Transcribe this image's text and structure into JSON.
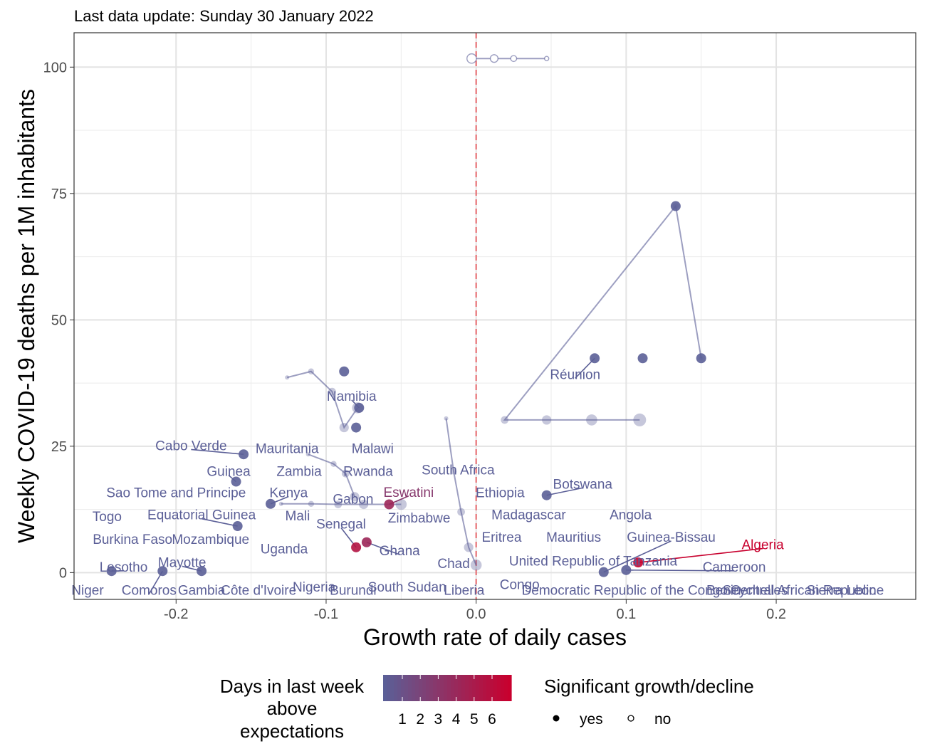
{
  "subtitle": "Last data update: Sunday 30 January 2022",
  "colors": {
    "low": "#5b5f97",
    "high": "#c8002e",
    "reference_line": "#e8676b",
    "grid": "#ebebeb",
    "panel_border": "#333333"
  },
  "chart_data": {
    "type": "scatter",
    "xlabel": "Growth rate of daily cases",
    "ylabel": "Weekly COVID-19 deaths per 1M inhabitants",
    "xlim": [
      -0.268,
      0.293
    ],
    "ylim": [
      -5.3,
      106.8
    ],
    "x_ticks": [
      -0.2,
      -0.1,
      0.0,
      0.1,
      0.2
    ],
    "x_tick_labels": [
      "-0.2",
      "-0.1",
      "0.0",
      "0.1",
      "0.2"
    ],
    "y_ticks": [
      0,
      25,
      50,
      75,
      100
    ],
    "y_tick_labels": [
      "0",
      "25",
      "50",
      "75",
      "100"
    ],
    "reference_line_x": 0.0,
    "grid": true,
    "legend_placement": "bottom",
    "trails": [
      {
        "x": [
          0.047,
          0.025,
          0.012,
          -0.003
        ],
        "y": [
          101.7,
          101.7,
          101.7,
          101.7
        ],
        "color_days": 1,
        "significant": false
      },
      {
        "x": [
          0.15,
          0.133,
          0.019,
          0.047,
          0.077,
          0.109
        ],
        "y": [
          42.4,
          72.5,
          30.2,
          30.2,
          30.2,
          30.2
        ],
        "color_days": 1,
        "significant": true
      },
      {
        "x": [
          -0.126,
          -0.11,
          -0.096,
          -0.088,
          -0.079
        ],
        "y": [
          38.6,
          39.8,
          35.8,
          28.7,
          32.6
        ],
        "color_days": 1,
        "significant": true
      },
      {
        "x": [
          -0.112,
          -0.095,
          -0.087,
          -0.081
        ],
        "y": [
          23.4,
          21.5,
          19.6,
          15.0
        ],
        "color_days": 1,
        "significant": true
      },
      {
        "x": [
          -0.13,
          -0.11,
          -0.092,
          -0.075,
          -0.05
        ],
        "y": [
          13.6,
          13.6,
          13.5,
          13.5,
          13.5
        ],
        "color_days": 1,
        "significant": true
      },
      {
        "x": [
          -0.02,
          -0.015,
          -0.01,
          -0.005,
          0.0
        ],
        "y": [
          30.5,
          20.0,
          12.0,
          5.0,
          1.5
        ],
        "color_days": 1,
        "significant": true
      }
    ],
    "points": [
      {
        "country": "Réunion",
        "x": 0.079,
        "y": 42.4,
        "days_above": 1,
        "significant": true
      },
      {
        "country": "Réunion",
        "x": 0.111,
        "y": 42.4,
        "days_above": 1,
        "significant": true
      },
      {
        "country": "Réunion",
        "x": 0.15,
        "y": 42.4,
        "days_above": 1,
        "significant": true
      },
      {
        "country": "Réunion",
        "x": 0.133,
        "y": 72.5,
        "days_above": 1,
        "significant": true
      },
      {
        "country": "Namibia",
        "x": -0.078,
        "y": 32.6,
        "days_above": 1,
        "significant": true
      },
      {
        "country": "Namibia",
        "x": -0.08,
        "y": 28.7,
        "days_above": 1,
        "significant": true
      },
      {
        "country": "Namibia",
        "x": -0.088,
        "y": 39.8,
        "days_above": 1,
        "significant": true
      },
      {
        "country": "Cabo Verde",
        "x": -0.155,
        "y": 23.4,
        "days_above": 1,
        "significant": true
      },
      {
        "country": "Guinea",
        "x": -0.16,
        "y": 18.0,
        "days_above": 1,
        "significant": true
      },
      {
        "country": "Botswana",
        "x": 0.047,
        "y": 15.3,
        "days_above": 1,
        "significant": true
      },
      {
        "country": "Equatorial Guinea",
        "x": -0.159,
        "y": 9.2,
        "days_above": 1,
        "significant": true
      },
      {
        "country": "Kenya",
        "x": -0.137,
        "y": 13.6,
        "days_above": 1,
        "significant": true
      },
      {
        "country": "Eswatini",
        "x": -0.058,
        "y": 13.5,
        "days_above": 4,
        "significant": true
      },
      {
        "country": "Ghana",
        "x": -0.073,
        "y": 6.0,
        "days_above": 4,
        "significant": true
      },
      {
        "country": "Senegal",
        "x": -0.08,
        "y": 5.0,
        "days_above": 5,
        "significant": true
      },
      {
        "country": "Algeria",
        "x": 0.108,
        "y": 2.0,
        "days_above": 6,
        "significant": true
      },
      {
        "country": "Lesotho",
        "x": -0.243,
        "y": 0.3,
        "days_above": 1,
        "significant": true
      },
      {
        "country": "Comoros",
        "x": -0.209,
        "y": 0.3,
        "days_above": 1,
        "significant": true
      },
      {
        "country": "Mayotte",
        "x": -0.183,
        "y": 0.3,
        "days_above": 1,
        "significant": true
      },
      {
        "country": "Cameroon",
        "x": 0.1,
        "y": 0.5,
        "days_above": 1,
        "significant": true
      },
      {
        "country": "Guinea-Bissau",
        "x": 0.085,
        "y": 0.1,
        "days_above": 1,
        "significant": true
      }
    ],
    "labels": [
      {
        "text": "Réunion",
        "x": 0.066,
        "y": 39.3,
        "days_above": 1
      },
      {
        "text": "Namibia",
        "x": -0.083,
        "y": 35.0,
        "days_above": 1
      },
      {
        "text": "Cabo Verde",
        "x": -0.19,
        "y": 25.2,
        "days_above": 1
      },
      {
        "text": "Mauritania",
        "x": -0.126,
        "y": 24.6,
        "days_above": 1
      },
      {
        "text": "Malawi",
        "x": -0.069,
        "y": 24.6,
        "days_above": 1
      },
      {
        "text": "Guinea",
        "x": -0.165,
        "y": 20.1,
        "days_above": 1
      },
      {
        "text": "Zambia",
        "x": -0.118,
        "y": 20.1,
        "days_above": 1
      },
      {
        "text": "Rwanda",
        "x": -0.072,
        "y": 20.1,
        "days_above": 1
      },
      {
        "text": "South Africa",
        "x": -0.012,
        "y": 20.4,
        "days_above": 1
      },
      {
        "text": "Botswana",
        "x": 0.071,
        "y": 17.6,
        "days_above": 1
      },
      {
        "text": "Sao Tome and Principe",
        "x": -0.2,
        "y": 15.9,
        "days_above": 1
      },
      {
        "text": "Kenya",
        "x": -0.125,
        "y": 15.9,
        "days_above": 1
      },
      {
        "text": "Eswatini",
        "x": -0.045,
        "y": 16.0,
        "days_above": 3
      },
      {
        "text": "Ethiopia",
        "x": 0.016,
        "y": 15.9,
        "days_above": 1
      },
      {
        "text": "Gabon",
        "x": -0.082,
        "y": 14.6,
        "days_above": 1
      },
      {
        "text": "Togo",
        "x": -0.246,
        "y": 11.2,
        "days_above": 1
      },
      {
        "text": "Equatorial Guinea",
        "x": -0.183,
        "y": 11.5,
        "days_above": 1
      },
      {
        "text": "Mali",
        "x": -0.119,
        "y": 11.3,
        "days_above": 1
      },
      {
        "text": "Zimbabwe",
        "x": -0.038,
        "y": 10.9,
        "days_above": 1
      },
      {
        "text": "Madagascar",
        "x": 0.035,
        "y": 11.5,
        "days_above": 1
      },
      {
        "text": "Angola",
        "x": 0.103,
        "y": 11.5,
        "days_above": 1
      },
      {
        "text": "Senegal",
        "x": -0.09,
        "y": 9.7,
        "days_above": 1
      },
      {
        "text": "Burkina Faso",
        "x": -0.229,
        "y": 6.7,
        "days_above": 1
      },
      {
        "text": "Mozambique",
        "x": -0.177,
        "y": 6.7,
        "days_above": 1
      },
      {
        "text": "Eritrea",
        "x": 0.017,
        "y": 7.1,
        "days_above": 1
      },
      {
        "text": "Mauritius",
        "x": 0.065,
        "y": 7.1,
        "days_above": 1
      },
      {
        "text": "Guinea-Bissau",
        "x": 0.13,
        "y": 7.1,
        "days_above": 1
      },
      {
        "text": "Algeria",
        "x": 0.191,
        "y": 5.6,
        "days_above": 6
      },
      {
        "text": "Uganda",
        "x": -0.128,
        "y": 4.8,
        "days_above": 1
      },
      {
        "text": "Ghana",
        "x": -0.051,
        "y": 4.4,
        "days_above": 1
      },
      {
        "text": "United Republic of Tanzania",
        "x": 0.078,
        "y": 2.4,
        "days_above": 1
      },
      {
        "text": "Mayotte",
        "x": -0.196,
        "y": 2.1,
        "days_above": 1
      },
      {
        "text": "Chad",
        "x": -0.015,
        "y": 1.9,
        "days_above": 1
      },
      {
        "text": "Lesotho",
        "x": -0.235,
        "y": 1.2,
        "days_above": 1
      },
      {
        "text": "Cameroon",
        "x": 0.172,
        "y": 1.2,
        "days_above": 1
      },
      {
        "text": "Niger",
        "x": -0.259,
        "y": -3.4,
        "days_above": 1
      },
      {
        "text": "Comoros",
        "x": -0.218,
        "y": -3.4,
        "days_above": 1
      },
      {
        "text": "Gambia",
        "x": -0.183,
        "y": -3.4,
        "days_above": 1
      },
      {
        "text": "Côte d'Ivoire",
        "x": -0.145,
        "y": -3.4,
        "days_above": 1
      },
      {
        "text": "Nigeria",
        "x": -0.108,
        "y": -2.8,
        "days_above": 1
      },
      {
        "text": "Burundi",
        "x": -0.082,
        "y": -3.4,
        "days_above": 1
      },
      {
        "text": "South Sudan",
        "x": -0.046,
        "y": -2.8,
        "days_above": 1
      },
      {
        "text": "Liberia",
        "x": -0.008,
        "y": -3.4,
        "days_above": 1
      },
      {
        "text": "Congo",
        "x": 0.029,
        "y": -2.3,
        "days_above": 1
      },
      {
        "text": "Democratic Republic of the Congo",
        "x": 0.099,
        "y": -3.4,
        "days_above": 1
      },
      {
        "text": "Benin",
        "x": 0.165,
        "y": -3.4,
        "days_above": 1
      },
      {
        "text": "Seychelles",
        "x": 0.186,
        "y": -3.4,
        "days_above": 1
      },
      {
        "text": "Central African Republic",
        "x": 0.218,
        "y": -3.4,
        "days_above": 1
      },
      {
        "text": "Sierra Leone",
        "x": 0.246,
        "y": -3.4,
        "days_above": 1
      }
    ]
  },
  "legend": {
    "color_title_lines": [
      "Days in last week",
      "above",
      "expectations"
    ],
    "color_ticks": [
      "1",
      "2",
      "3",
      "4",
      "5",
      "6"
    ],
    "shape_title": "Significant growth/decline",
    "shape_items": [
      {
        "label": "yes",
        "filled": true
      },
      {
        "label": "no",
        "filled": false
      }
    ]
  }
}
